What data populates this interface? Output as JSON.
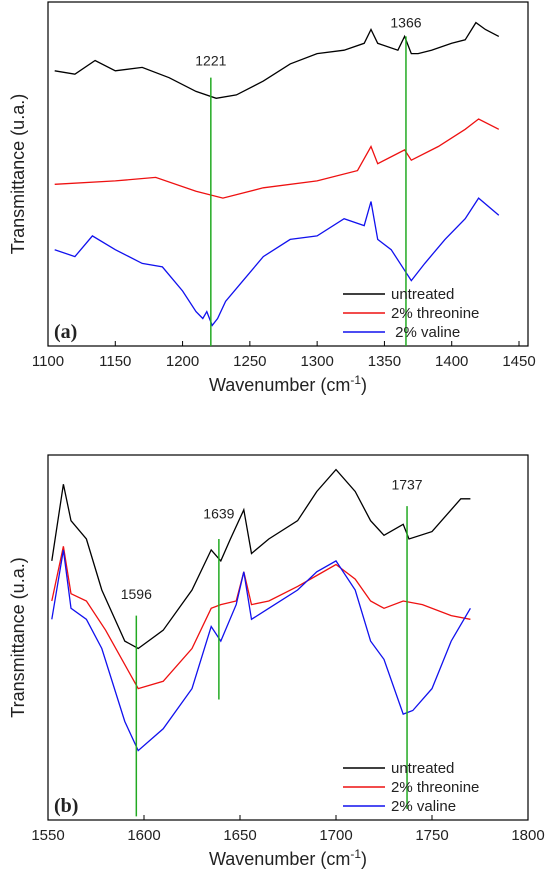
{
  "chart_data": [
    {
      "type": "line",
      "panel_label": "(a)",
      "xlabel": "Wavenumber (cm",
      "xlabel_sup": "-1",
      "xlabel_end": ")",
      "ylabel": "Transmittance (u.a.)",
      "xlim": [
        1100,
        1450
      ],
      "xticks": [
        1100,
        1150,
        1200,
        1250,
        1300,
        1350,
        1400,
        1450
      ],
      "ylim": [
        0,
        100
      ],
      "legend": "lower right",
      "annotations": [
        {
          "text": "1221",
          "x": 1221,
          "y": 81,
          "y_end": [
            78,
            0
          ],
          "color": "#22aa22"
        },
        {
          "text": "1366",
          "x": 1366,
          "y": 92,
          "y_end": [
            90,
            0
          ],
          "color": "#22aa22"
        }
      ],
      "series": [
        {
          "name": "untreated",
          "color": "#000000",
          "x": [
            1105,
            1120,
            1135,
            1150,
            1170,
            1190,
            1210,
            1225,
            1240,
            1260,
            1280,
            1300,
            1320,
            1335,
            1340,
            1345,
            1360,
            1365,
            1370,
            1375,
            1385,
            1400,
            1410,
            1418,
            1425,
            1435
          ],
          "values": [
            80,
            79,
            83,
            80,
            81,
            78,
            74,
            72,
            73,
            77,
            82,
            85,
            86,
            88,
            92,
            88,
            86,
            90,
            85,
            85,
            86,
            88,
            89,
            94,
            92,
            90
          ]
        },
        {
          "name": "2% threonine",
          "color": "#ee1111",
          "x": [
            1105,
            1150,
            1180,
            1210,
            1230,
            1260,
            1300,
            1330,
            1340,
            1345,
            1365,
            1370,
            1390,
            1410,
            1420,
            1435
          ],
          "values": [
            47,
            48,
            49,
            45,
            43,
            46,
            48,
            51,
            58,
            53,
            57,
            54,
            58,
            63,
            66,
            63
          ]
        },
        {
          "name": " 2% valine",
          "color": "#1111ee",
          "x": [
            1105,
            1120,
            1133,
            1150,
            1170,
            1185,
            1200,
            1210,
            1215,
            1218,
            1222,
            1226,
            1232,
            1245,
            1260,
            1280,
            1300,
            1320,
            1335,
            1340,
            1345,
            1355,
            1365,
            1370,
            1380,
            1395,
            1410,
            1420,
            1435
          ],
          "values": [
            28,
            26,
            32,
            28,
            24,
            23,
            16,
            10,
            8,
            10,
            6,
            8,
            13,
            19,
            26,
            31,
            32,
            37,
            35,
            42,
            31,
            28,
            22,
            19,
            24,
            31,
            37,
            43,
            38
          ]
        }
      ]
    },
    {
      "type": "line",
      "panel_label": "(b)",
      "xlabel": "Wavenumber (cm",
      "xlabel_sup": "-1",
      "xlabel_end": ")",
      "ylabel": "Transmittance (u.a.)",
      "xlim": [
        1550,
        1800
      ],
      "xticks": [
        1550,
        1600,
        1650,
        1700,
        1750,
        1800
      ],
      "ylim": [
        0,
        100
      ],
      "legend": "lower right",
      "annotations": [
        {
          "text": "1596",
          "x": 1596,
          "y": 60,
          "y_end": [
            56,
            1
          ],
          "color": "#22aa22"
        },
        {
          "text": "1639",
          "x": 1639,
          "y": 82,
          "y_end": [
            77,
            33
          ],
          "color": "#22aa22"
        },
        {
          "text": "1737",
          "x": 1737,
          "y": 90,
          "y_end": [
            86,
            3
          ],
          "color": "#22aa22"
        }
      ],
      "series": [
        {
          "name": "untreated",
          "color": "#000000",
          "x": [
            1552,
            1558,
            1562,
            1570,
            1578,
            1590,
            1597,
            1610,
            1625,
            1635,
            1640,
            1645,
            1652,
            1656,
            1665,
            1680,
            1690,
            1700,
            1710,
            1718,
            1725,
            1735,
            1738,
            1750,
            1765,
            1770
          ],
          "values": [
            71,
            92,
            82,
            77,
            63,
            49,
            47,
            52,
            63,
            74,
            71,
            77,
            85,
            73,
            77,
            82,
            90,
            96,
            90,
            82,
            78,
            81,
            77,
            79,
            88,
            88
          ]
        },
        {
          "name": "2% threonine",
          "color": "#ee1111",
          "x": [
            1552,
            1558,
            1562,
            1570,
            1580,
            1597,
            1610,
            1625,
            1635,
            1640,
            1648,
            1652,
            1656,
            1665,
            1680,
            1690,
            1700,
            1710,
            1718,
            1725,
            1735,
            1745,
            1760,
            1770
          ],
          "values": [
            60,
            75,
            62,
            60,
            52,
            36,
            38,
            47,
            58,
            59,
            60,
            68,
            59,
            60,
            64,
            67,
            70,
            66,
            60,
            58,
            60,
            59,
            56,
            55
          ]
        },
        {
          "name": "2% valine",
          "color": "#1111ee",
          "x": [
            1552,
            1558,
            1562,
            1570,
            1578,
            1590,
            1597,
            1610,
            1625,
            1635,
            1640,
            1648,
            1652,
            1656,
            1665,
            1680,
            1690,
            1700,
            1710,
            1718,
            1725,
            1735,
            1740,
            1750,
            1760,
            1770
          ],
          "values": [
            55,
            74,
            58,
            55,
            47,
            27,
            19,
            25,
            36,
            53,
            49,
            59,
            68,
            55,
            58,
            63,
            68,
            71,
            63,
            49,
            44,
            29,
            30,
            36,
            49,
            58
          ]
        }
      ]
    }
  ]
}
